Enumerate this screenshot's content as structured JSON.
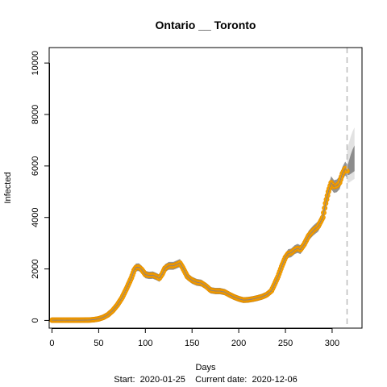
{
  "chart_data": {
    "type": "scatter",
    "title": "Ontario __ Toronto",
    "xlabel": "Days",
    "ylabel": "Infected",
    "footer": "Start:  2020-01-25    Current date:  2020-12-06",
    "xlim": [
      -3,
      332
    ],
    "ylim": [
      -300,
      10600
    ],
    "x_ticks": [
      0,
      50,
      100,
      150,
      200,
      250,
      300
    ],
    "y_ticks": [
      0,
      2000,
      4000,
      6000,
      8000,
      10000
    ],
    "current_day": 316,
    "grid": false,
    "colors": {
      "observed": "#f5a100",
      "band": "#808080",
      "fit": "#4a6fd9",
      "forecast": "#8c8c8c",
      "current_line": "#bbbbbb"
    },
    "series": [
      {
        "values_xy": [
          [
            0,
            10
          ],
          [
            10,
            10
          ],
          [
            20,
            10
          ],
          [
            30,
            10
          ],
          [
            40,
            15
          ],
          [
            45,
            30
          ],
          [
            50,
            60
          ],
          [
            55,
            120
          ],
          [
            60,
            220
          ],
          [
            65,
            380
          ],
          [
            70,
            600
          ],
          [
            75,
            880
          ],
          [
            80,
            1250
          ],
          [
            85,
            1650
          ],
          [
            88,
            1950
          ],
          [
            90,
            2060
          ],
          [
            93,
            2070
          ],
          [
            96,
            1980
          ],
          [
            100,
            1780
          ],
          [
            104,
            1750
          ],
          [
            108,
            1760
          ],
          [
            112,
            1700
          ],
          [
            115,
            1640
          ],
          [
            118,
            1800
          ],
          [
            121,
            2030
          ],
          [
            125,
            2120
          ],
          [
            130,
            2120
          ],
          [
            134,
            2180
          ],
          [
            137,
            2230
          ],
          [
            140,
            2050
          ],
          [
            145,
            1700
          ],
          [
            150,
            1560
          ],
          [
            155,
            1480
          ],
          [
            160,
            1450
          ],
          [
            165,
            1330
          ],
          [
            170,
            1170
          ],
          [
            175,
            1140
          ],
          [
            180,
            1140
          ],
          [
            185,
            1100
          ],
          [
            190,
            1000
          ],
          [
            195,
            910
          ],
          [
            200,
            840
          ],
          [
            205,
            790
          ],
          [
            210,
            800
          ],
          [
            215,
            830
          ],
          [
            220,
            870
          ],
          [
            225,
            920
          ],
          [
            230,
            1000
          ],
          [
            235,
            1150
          ],
          [
            238,
            1380
          ],
          [
            242,
            1700
          ],
          [
            246,
            2100
          ],
          [
            250,
            2450
          ],
          [
            253,
            2600
          ],
          [
            256,
            2620
          ],
          [
            260,
            2750
          ],
          [
            263,
            2800
          ],
          [
            266,
            2750
          ],
          [
            270,
            2950
          ],
          [
            275,
            3300
          ],
          [
            280,
            3500
          ],
          [
            285,
            3650
          ],
          [
            290,
            4000
          ],
          [
            293,
            4550
          ],
          [
            296,
            5000
          ],
          [
            299,
            5350
          ],
          [
            302,
            5200
          ],
          [
            305,
            5230
          ],
          [
            308,
            5350
          ],
          [
            311,
            5700
          ],
          [
            314,
            5900
          ],
          [
            316,
            5800
          ]
        ]
      },
      {
        "forecast_xy": [
          [
            316,
            5650,
            5950
          ],
          [
            318,
            5650,
            6200
          ],
          [
            320,
            5700,
            6450
          ],
          [
            322,
            5750,
            6650
          ],
          [
            324,
            5800,
            6800
          ]
        ]
      }
    ]
  }
}
